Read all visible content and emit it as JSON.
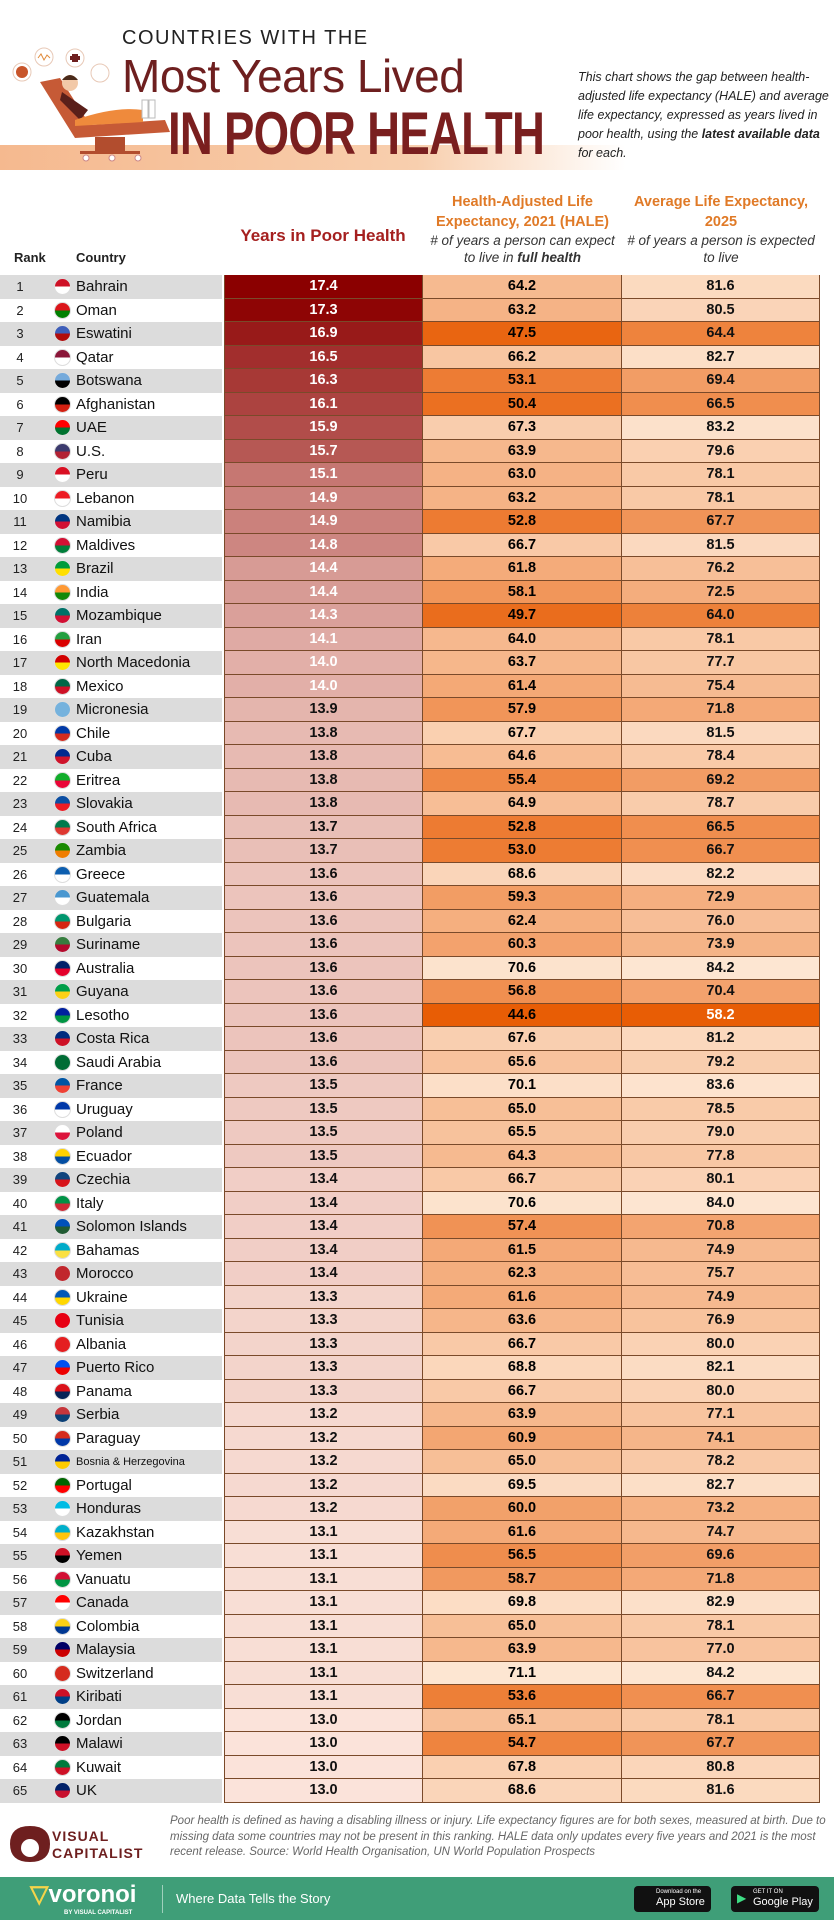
{
  "header": {
    "kicker": "COUNTRIES WITH THE",
    "title_line1": "Most Years Lived",
    "title_line2": "IN POOR HEALTH",
    "description_pre": "This chart shows the gap between health-adjusted life expectancy (HALE) and average life expectancy, expressed as years lived in poor health, using the ",
    "description_bold": "latest available data",
    "description_post": " for each."
  },
  "chart_data": {
    "type": "table",
    "columns": {
      "rank": "Rank",
      "country": "Country",
      "poor": "Years in Poor Health",
      "hale_title": "Health-Adjusted Life Expectancy, 2021 (HALE)",
      "hale_sub_pre": "# of years a person can expect to live in ",
      "hale_sub_bold": "full health",
      "le_title": "Average Life Expectancy, 2025",
      "le_sub": "# of years a person is expected to live"
    },
    "colors": {
      "poor_high": "#8b0000",
      "poor_low": "#fbe3da",
      "orange_low": "#e85d05",
      "orange_high": "#fde6d2",
      "header_red": "#a5201f",
      "header_orange": "#e07a27"
    },
    "rows": [
      {
        "rank": "1",
        "country": "Bahrain",
        "poor": 17.4,
        "hale": 64.2,
        "le": 81.6,
        "flag": [
          "#ce1126",
          "#ffffff"
        ]
      },
      {
        "rank": "2",
        "country": "Oman",
        "poor": 17.3,
        "hale": 63.2,
        "le": 80.5,
        "flag": [
          "#db161b",
          "#008000"
        ]
      },
      {
        "rank": "3",
        "country": "Eswatini",
        "poor": 16.9,
        "hale": 47.5,
        "le": 64.4,
        "flag": [
          "#3e5eb9",
          "#b10c0c"
        ]
      },
      {
        "rank": "4",
        "country": "Qatar",
        "poor": 16.5,
        "hale": 66.2,
        "le": 82.7,
        "flag": [
          "#8a1538",
          "#ffffff"
        ]
      },
      {
        "rank": "5",
        "country": "Botswana",
        "poor": 16.3,
        "hale": 53.1,
        "le": 69.4,
        "flag": [
          "#75aadb",
          "#000000"
        ]
      },
      {
        "rank": "6",
        "country": "Afghanistan",
        "poor": 16.1,
        "hale": 50.4,
        "le": 66.5,
        "flag": [
          "#000000",
          "#d32011"
        ]
      },
      {
        "rank": "7",
        "country": "UAE",
        "poor": 15.9,
        "hale": 67.3,
        "le": 83.2,
        "flag": [
          "#ff0000",
          "#00732f"
        ]
      },
      {
        "rank": "8",
        "country": "U.S.",
        "poor": 15.7,
        "hale": 63.9,
        "le": 79.6,
        "flag": [
          "#3c3b6e",
          "#b22234"
        ]
      },
      {
        "rank": "9",
        "country": "Peru",
        "poor": 15.1,
        "hale": 63.0,
        "le": 78.1,
        "flag": [
          "#d91023",
          "#ffffff"
        ]
      },
      {
        "rank": "10",
        "country": "Lebanon",
        "poor": 14.9,
        "hale": 63.2,
        "le": 78.1,
        "flag": [
          "#ed1c24",
          "#ffffff"
        ]
      },
      {
        "rank": "11",
        "country": "Namibia",
        "poor": 14.9,
        "hale": 52.8,
        "le": 67.7,
        "flag": [
          "#003580",
          "#d21034"
        ]
      },
      {
        "rank": "12",
        "country": "Maldives",
        "poor": 14.8,
        "hale": 66.7,
        "le": 81.5,
        "flag": [
          "#d21034",
          "#007e3a"
        ]
      },
      {
        "rank": "13",
        "country": "Brazil",
        "poor": 14.4,
        "hale": 61.8,
        "le": 76.2,
        "flag": [
          "#009c3b",
          "#ffdf00"
        ]
      },
      {
        "rank": "14",
        "country": "India",
        "poor": 14.4,
        "hale": 58.1,
        "le": 72.5,
        "flag": [
          "#ff9933",
          "#138808"
        ]
      },
      {
        "rank": "15",
        "country": "Mozambique",
        "poor": 14.3,
        "hale": 49.7,
        "le": 64.0,
        "flag": [
          "#007168",
          "#d21034"
        ]
      },
      {
        "rank": "16",
        "country": "Iran",
        "poor": 14.1,
        "hale": 64.0,
        "le": 78.1,
        "flag": [
          "#239f40",
          "#da0000"
        ]
      },
      {
        "rank": "17",
        "country": "North Macedonia",
        "poor": 14.0,
        "hale": 63.7,
        "le": 77.7,
        "flag": [
          "#d20000",
          "#ffe600"
        ]
      },
      {
        "rank": "18",
        "country": "Mexico",
        "poor": 14.0,
        "hale": 61.4,
        "le": 75.4,
        "flag": [
          "#006847",
          "#ce1126"
        ]
      },
      {
        "rank": "19",
        "country": "Micronesia",
        "poor": 13.9,
        "hale": 57.9,
        "le": 71.8,
        "flag": [
          "#75b2dd",
          "#75b2dd"
        ]
      },
      {
        "rank": "20",
        "country": "Chile",
        "poor": 13.8,
        "hale": 67.7,
        "le": 81.5,
        "flag": [
          "#0039a6",
          "#d52b1e"
        ]
      },
      {
        "rank": "21",
        "country": "Cuba",
        "poor": 13.8,
        "hale": 64.6,
        "le": 78.4,
        "flag": [
          "#002a8f",
          "#cf142b"
        ]
      },
      {
        "rank": "22",
        "country": "Eritrea",
        "poor": 13.8,
        "hale": 55.4,
        "le": 69.2,
        "flag": [
          "#12ad2b",
          "#ea0437"
        ]
      },
      {
        "rank": "23",
        "country": "Slovakia",
        "poor": 13.8,
        "hale": 64.9,
        "le": 78.7,
        "flag": [
          "#0b4ea2",
          "#ee1c25"
        ]
      },
      {
        "rank": "24",
        "country": "South Africa",
        "poor": 13.7,
        "hale": 52.8,
        "le": 66.5,
        "flag": [
          "#007a4d",
          "#de3831"
        ]
      },
      {
        "rank": "25",
        "country": "Zambia",
        "poor": 13.7,
        "hale": 53.0,
        "le": 66.7,
        "flag": [
          "#198a00",
          "#ef7d00"
        ]
      },
      {
        "rank": "26",
        "country": "Greece",
        "poor": 13.6,
        "hale": 68.6,
        "le": 82.2,
        "flag": [
          "#0d5eaf",
          "#ffffff"
        ]
      },
      {
        "rank": "27",
        "country": "Guatemala",
        "poor": 13.6,
        "hale": 59.3,
        "le": 72.9,
        "flag": [
          "#4997d0",
          "#ffffff"
        ]
      },
      {
        "rank": "28",
        "country": "Bulgaria",
        "poor": 13.6,
        "hale": 62.4,
        "le": 76.0,
        "flag": [
          "#00966e",
          "#d62612"
        ]
      },
      {
        "rank": "29",
        "country": "Suriname",
        "poor": 13.6,
        "hale": 60.3,
        "le": 73.9,
        "flag": [
          "#377e3f",
          "#b40a2d"
        ]
      },
      {
        "rank": "30",
        "country": "Australia",
        "poor": 13.6,
        "hale": 70.6,
        "le": 84.2,
        "flag": [
          "#012169",
          "#e4002b"
        ]
      },
      {
        "rank": "31",
        "country": "Guyana",
        "poor": 13.6,
        "hale": 56.8,
        "le": 70.4,
        "flag": [
          "#009e49",
          "#fcd116"
        ]
      },
      {
        "rank": "32",
        "country": "Lesotho",
        "poor": 13.6,
        "hale": 44.6,
        "le": 58.2,
        "flag": [
          "#00209f",
          "#009543"
        ]
      },
      {
        "rank": "33",
        "country": "Costa Rica",
        "poor": 13.6,
        "hale": 67.6,
        "le": 81.2,
        "flag": [
          "#002b7f",
          "#ce1126"
        ]
      },
      {
        "rank": "34",
        "country": "Saudi Arabia",
        "poor": 13.6,
        "hale": 65.6,
        "le": 79.2,
        "flag": [
          "#006c35",
          "#006c35"
        ]
      },
      {
        "rank": "35",
        "country": "France",
        "poor": 13.5,
        "hale": 70.1,
        "le": 83.6,
        "flag": [
          "#0055a4",
          "#ef4135"
        ]
      },
      {
        "rank": "36",
        "country": "Uruguay",
        "poor": 13.5,
        "hale": 65.0,
        "le": 78.5,
        "flag": [
          "#0038a8",
          "#ffffff"
        ]
      },
      {
        "rank": "37",
        "country": "Poland",
        "poor": 13.5,
        "hale": 65.5,
        "le": 79.0,
        "flag": [
          "#ffffff",
          "#dc143c"
        ]
      },
      {
        "rank": "38",
        "country": "Ecuador",
        "poor": 13.5,
        "hale": 64.3,
        "le": 77.8,
        "flag": [
          "#ffd100",
          "#034ea2"
        ]
      },
      {
        "rank": "39",
        "country": "Czechia",
        "poor": 13.4,
        "hale": 66.7,
        "le": 80.1,
        "flag": [
          "#11457e",
          "#d7141a"
        ]
      },
      {
        "rank": "40",
        "country": "Italy",
        "poor": 13.4,
        "hale": 70.6,
        "le": 84.0,
        "flag": [
          "#009246",
          "#ce2b37"
        ]
      },
      {
        "rank": "41",
        "country": "Solomon Islands",
        "poor": 13.4,
        "hale": 57.4,
        "le": 70.8,
        "flag": [
          "#0051ba",
          "#215b33"
        ]
      },
      {
        "rank": "42",
        "country": "Bahamas",
        "poor": 13.4,
        "hale": 61.5,
        "le": 74.9,
        "flag": [
          "#00abc9",
          "#fae042"
        ]
      },
      {
        "rank": "43",
        "country": "Morocco",
        "poor": 13.4,
        "hale": 62.3,
        "le": 75.7,
        "flag": [
          "#c1272d",
          "#c1272d"
        ]
      },
      {
        "rank": "44",
        "country": "Ukraine",
        "poor": 13.3,
        "hale": 61.6,
        "le": 74.9,
        "flag": [
          "#0057b7",
          "#ffd700"
        ]
      },
      {
        "rank": "45",
        "country": "Tunisia",
        "poor": 13.3,
        "hale": 63.6,
        "le": 76.9,
        "flag": [
          "#e70013",
          "#e70013"
        ]
      },
      {
        "rank": "46",
        "country": "Albania",
        "poor": 13.3,
        "hale": 66.7,
        "le": 80.0,
        "flag": [
          "#e41e20",
          "#e41e20"
        ]
      },
      {
        "rank": "47",
        "country": "Puerto Rico",
        "poor": 13.3,
        "hale": 68.8,
        "le": 82.1,
        "flag": [
          "#0050f0",
          "#ed0000"
        ]
      },
      {
        "rank": "48",
        "country": "Panama",
        "poor": 13.3,
        "hale": 66.7,
        "le": 80.0,
        "flag": [
          "#da121a",
          "#072357"
        ]
      },
      {
        "rank": "49",
        "country": "Serbia",
        "poor": 13.2,
        "hale": 63.9,
        "le": 77.1,
        "flag": [
          "#c6363c",
          "#0c4076"
        ]
      },
      {
        "rank": "50",
        "country": "Paraguay",
        "poor": 13.2,
        "hale": 60.9,
        "le": 74.1,
        "flag": [
          "#d52b1e",
          "#0038a8"
        ]
      },
      {
        "rank": "51",
        "country": "Bosnia & Herzegovina",
        "poor": 13.2,
        "hale": 65.0,
        "le": 78.2,
        "flag": [
          "#002395",
          "#fecb00"
        ]
      },
      {
        "rank": "52",
        "country": "Portugal",
        "poor": 13.2,
        "hale": 69.5,
        "le": 82.7,
        "flag": [
          "#006600",
          "#ff0000"
        ]
      },
      {
        "rank": "53",
        "country": "Honduras",
        "poor": 13.2,
        "hale": 60.0,
        "le": 73.2,
        "flag": [
          "#00bce4",
          "#ffffff"
        ]
      },
      {
        "rank": "54",
        "country": "Kazakhstan",
        "poor": 13.1,
        "hale": 61.6,
        "le": 74.7,
        "flag": [
          "#00afca",
          "#fec50c"
        ]
      },
      {
        "rank": "55",
        "country": "Yemen",
        "poor": 13.1,
        "hale": 56.5,
        "le": 69.6,
        "flag": [
          "#ce1126",
          "#000000"
        ]
      },
      {
        "rank": "56",
        "country": "Vanuatu",
        "poor": 13.1,
        "hale": 58.7,
        "le": 71.8,
        "flag": [
          "#d21034",
          "#009543"
        ]
      },
      {
        "rank": "57",
        "country": "Canada",
        "poor": 13.1,
        "hale": 69.8,
        "le": 82.9,
        "flag": [
          "#ff0000",
          "#ffffff"
        ]
      },
      {
        "rank": "58",
        "country": "Colombia",
        "poor": 13.1,
        "hale": 65.0,
        "le": 78.1,
        "flag": [
          "#fcd116",
          "#003893"
        ]
      },
      {
        "rank": "59",
        "country": "Malaysia",
        "poor": 13.1,
        "hale": 63.9,
        "le": 77.0,
        "flag": [
          "#010066",
          "#cc0001"
        ]
      },
      {
        "rank": "60",
        "country": "Switzerland",
        "poor": 13.1,
        "hale": 71.1,
        "le": 84.2,
        "flag": [
          "#d52b1e",
          "#d52b1e"
        ]
      },
      {
        "rank": "61",
        "country": "Kiribati",
        "poor": 13.1,
        "hale": 53.6,
        "le": 66.7,
        "flag": [
          "#ce1126",
          "#003f87"
        ]
      },
      {
        "rank": "62",
        "country": "Jordan",
        "poor": 13.0,
        "hale": 65.1,
        "le": 78.1,
        "flag": [
          "#000000",
          "#007a3d"
        ]
      },
      {
        "rank": "63",
        "country": "Malawi",
        "poor": 13.0,
        "hale": 54.7,
        "le": 67.7,
        "flag": [
          "#000000",
          "#ce1126"
        ]
      },
      {
        "rank": "64",
        "country": "Kuwait",
        "poor": 13.0,
        "hale": 67.8,
        "le": 80.8,
        "flag": [
          "#007a3d",
          "#ce1126"
        ]
      },
      {
        "rank": "65",
        "country": "UK",
        "poor": 13.0,
        "hale": 68.6,
        "le": 81.6,
        "flag": [
          "#012169",
          "#c8102e"
        ]
      }
    ]
  },
  "footer": {
    "note": "Poor health is defined as having a disabling illness or injury. Life expectancy figures are for both sexes, measured at birth. Due to missing data some countries may not be present in this ranking. HALE data only updates every five years and 2021 is the most recent release. Source: World Health Organisation, UN World Population Prospects",
    "vc_line1": "VISUAL",
    "vc_line2": "CAPITALIST",
    "brand": "voronoi",
    "brand_by": "BY VISUAL CAPITALIST",
    "tagline": "Where Data Tells the Story",
    "appstore_small": "Download on the",
    "appstore": "App Store",
    "gplay_small": "GET IT ON",
    "gplay": "Google Play",
    "bar_color": "#3f9e78"
  }
}
